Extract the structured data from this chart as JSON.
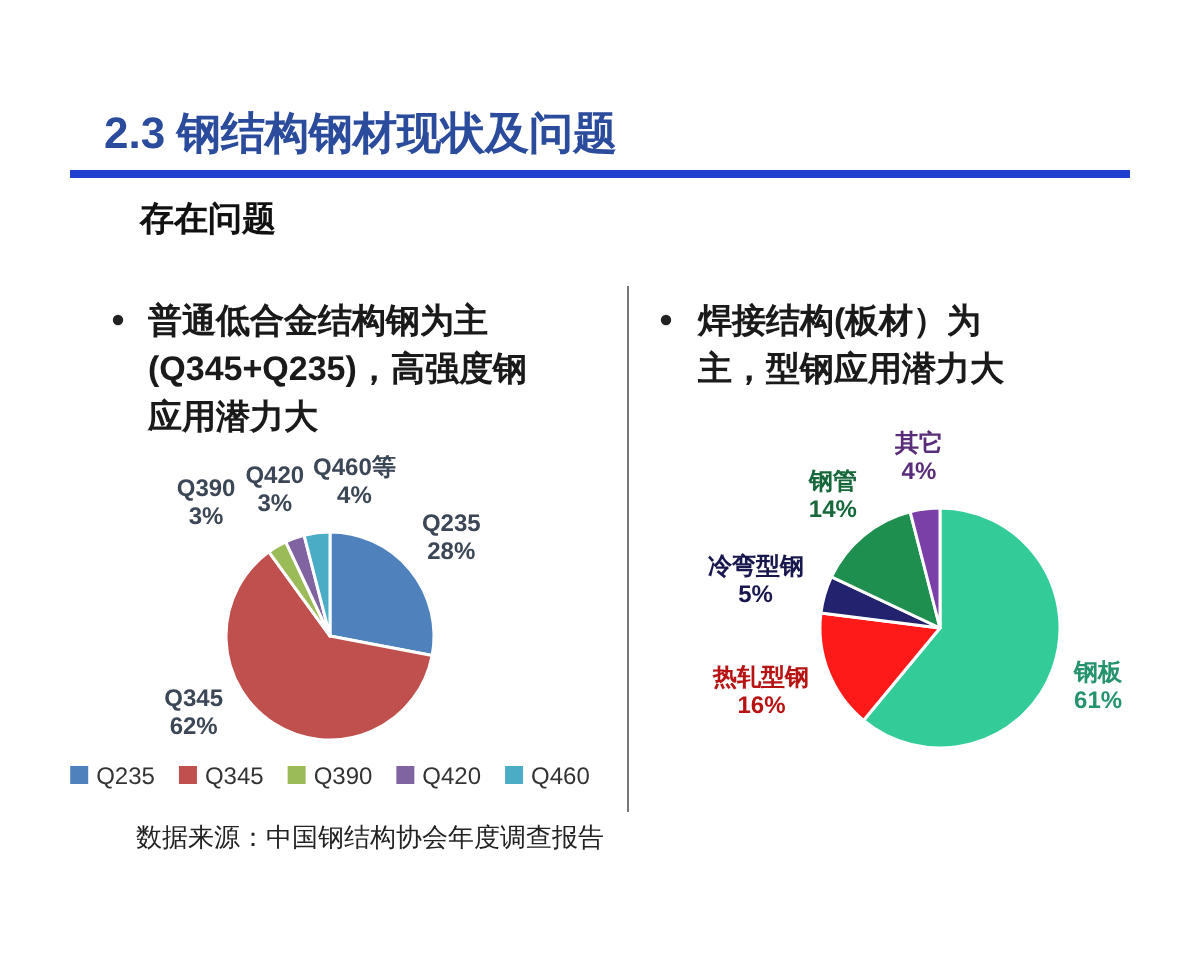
{
  "chart_data": [
    {
      "type": "pie",
      "title": "2.3 钢结构钢材现状及问题",
      "subtitle": "存在问题",
      "categories": [
        "Q235",
        "Q345",
        "Q390",
        "Q420",
        "Q460"
      ],
      "values": [
        28,
        62,
        3,
        3,
        4
      ],
      "colors": [
        "#4f81bd",
        "#c0504d",
        "#9bbb59",
        "#8064a2",
        "#4bacc6"
      ],
      "value_labels": [
        "Q235\n28%",
        "Q345\n62%",
        "Q390\n3%",
        "Q420\n3%",
        "Q460等\n4%"
      ],
      "legend": "bottom",
      "annotations": [
        "普通低合金结构钢为主(Q345+Q235)，高强度钢应用潜力大",
        "数据来源：中国钢结构协会年度调查报告"
      ]
    },
    {
      "type": "pie",
      "categories": [
        "钢板",
        "热轧型钢",
        "冷弯型钢",
        "钢管",
        "其它"
      ],
      "values": [
        61,
        16,
        5,
        14,
        4
      ],
      "colors": [
        "#33cc99",
        "#ff1a1a",
        "#22226e",
        "#1f8f50",
        "#7b3fa8"
      ],
      "value_labels": [
        "61%",
        "16%",
        "5%",
        "14%",
        "4%"
      ],
      "annotations": [
        "焊接结构(板材）为主，型钢应用潜力大"
      ]
    }
  ]
}
